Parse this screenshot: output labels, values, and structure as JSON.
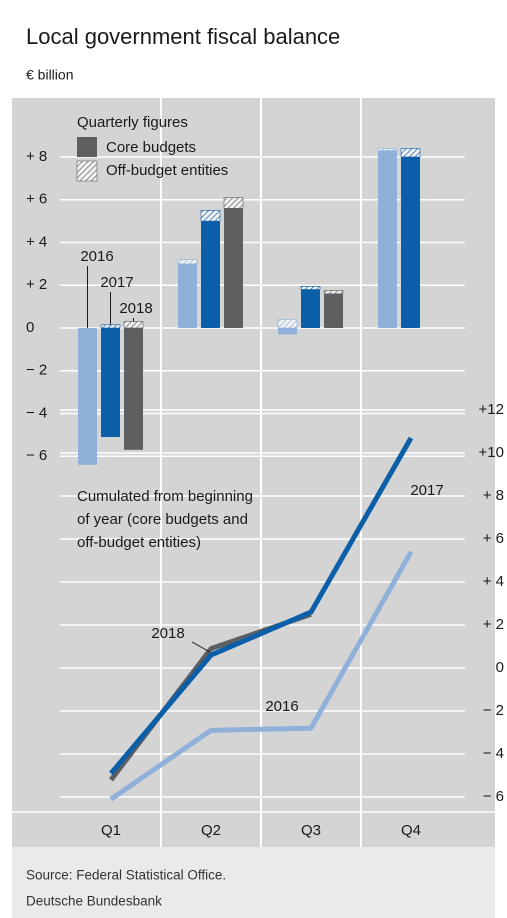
{
  "title": "Local government fiscal balance",
  "subtitle": "€ billion",
  "source": "Source: Federal Statistical Office.",
  "publisher": "Deutsche Bundesbank",
  "chart_data": [
    {
      "type": "bar",
      "legend_title": "Quarterly figures",
      "legend": [
        "Core budgets",
        "Off-budget entities"
      ],
      "categories": [
        "Q1",
        "Q2",
        "Q3",
        "Q4"
      ],
      "series": [
        {
          "name": "2016",
          "color": "#8eb0d9",
          "values": [
            -6.4,
            3.0,
            -0.3,
            8.3
          ],
          "off_budget": [
            0.0,
            0.2,
            0.4,
            0.1
          ]
        },
        {
          "name": "2017",
          "color": "#0b5ea8",
          "values": [
            -5.1,
            5.0,
            1.8,
            8.0
          ],
          "off_budget": [
            0.15,
            0.5,
            0.15,
            0.4
          ]
        },
        {
          "name": "2018",
          "color": "#5e5f61",
          "values": [
            -5.7,
            5.6,
            1.6,
            null
          ],
          "off_budget": [
            0.3,
            0.5,
            0.15,
            null
          ]
        }
      ],
      "ylim": [
        -6.5,
        8.5
      ],
      "yticks": [
        {
          "value": -6,
          "label": "− 6"
        },
        {
          "value": -4,
          "label": "− 4"
        },
        {
          "value": -2,
          "label": "− 2"
        },
        0,
        {
          "value": 2,
          "label": "+ 2"
        },
        {
          "value": 4,
          "label": "+ 4"
        },
        {
          "value": 6,
          "label": "+ 6"
        },
        {
          "value": 8,
          "label": "+ 8"
        }
      ],
      "grid": true
    },
    {
      "type": "line",
      "annotation": [
        "Cumulated from beginning",
        "of year (core budgets and",
        "off-budget entities)"
      ],
      "series": [
        {
          "name": "2016",
          "color": "#8eb0d9",
          "values": [
            -6.1,
            -2.9,
            -2.8,
            5.4
          ]
        },
        {
          "name": "2018",
          "color": "#5e5f61",
          "values": [
            -5.2,
            0.9,
            2.5,
            null
          ]
        },
        {
          "name": "2017",
          "color": "#0b5ea8",
          "values": [
            -4.9,
            0.6,
            2.6,
            10.7
          ]
        }
      ],
      "y2lim": [
        -6.5,
        12.5
      ],
      "y2ticks": [
        {
          "value": -6,
          "label": "− 6"
        },
        {
          "value": -4,
          "label": "− 4"
        },
        {
          "value": -2,
          "label": "− 2"
        },
        0,
        {
          "value": 2,
          "label": "+ 2"
        },
        {
          "value": 4,
          "label": "+ 4"
        },
        {
          "value": 6,
          "label": "+ 6"
        },
        {
          "value": 8,
          "label": "+ 8"
        },
        {
          "value": 10,
          "label": "+10"
        },
        {
          "value": 12,
          "label": "+12"
        }
      ],
      "grid": true
    }
  ]
}
